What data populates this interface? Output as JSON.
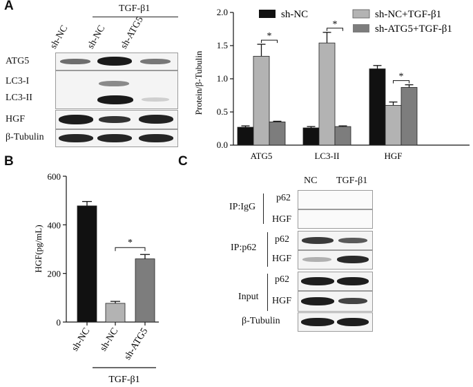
{
  "panels": {
    "a": "A",
    "b": "B",
    "c": "C"
  },
  "panel_a_blot": {
    "group_label": "TGF-β1",
    "lanes": [
      "sh-NC",
      "sh-NC",
      "sh-ATG5"
    ],
    "rows": [
      "ATG5",
      "LC3-I",
      "LC3-II",
      "HGF",
      "β-Tubulin"
    ]
  },
  "panel_c_blot": {
    "lanes": [
      "NC",
      "TGF-β1"
    ],
    "ip_igg": "IP:IgG",
    "ip_p62": "IP:p62",
    "input": "Input",
    "protein_p62": "p62",
    "protein_hgf": "HGF",
    "loading": "β-Tubulin"
  },
  "colors": {
    "black_series": "#111111",
    "light_series": "#b3b3b3",
    "dark_gray_series": "#7d7d7d"
  },
  "chart_data": [
    {
      "type": "bar",
      "ylabel": "Protein/β-Tubulin",
      "ylim": [
        0,
        2.0
      ],
      "yticks": [
        "0.0",
        "0.5",
        "1.0",
        "1.5",
        "2.0"
      ],
      "categories": [
        "ATG5",
        "LC3-II",
        "HGF"
      ],
      "legend_position": "top",
      "series": [
        {
          "name": "sh-NC",
          "values": [
            0.27,
            0.26,
            1.15
          ],
          "errors": [
            0.02,
            0.02,
            0.05
          ]
        },
        {
          "name": "sh-NC+TGF-β1",
          "values": [
            1.34,
            1.54,
            0.6
          ],
          "errors": [
            0.18,
            0.16,
            0.05
          ]
        },
        {
          "name": "sh-ATG5+TGF-β1",
          "values": [
            0.35,
            0.28,
            0.87
          ],
          "errors": [
            0.01,
            0.01,
            0.04
          ]
        }
      ],
      "annotations": [
        "*",
        "*",
        "*"
      ]
    },
    {
      "type": "bar",
      "ylabel": "HGF(pg/mL)",
      "ylim": [
        0,
        600
      ],
      "yticks": [
        "0",
        "200",
        "400",
        "600"
      ],
      "categories": [
        "sh-NC",
        "sh-NC",
        "sh-ATG5"
      ],
      "group_label": "TGF-β1",
      "values": [
        478,
        77,
        260
      ],
      "errors": [
        18,
        8,
        18
      ],
      "annotations": [
        "*"
      ]
    }
  ]
}
